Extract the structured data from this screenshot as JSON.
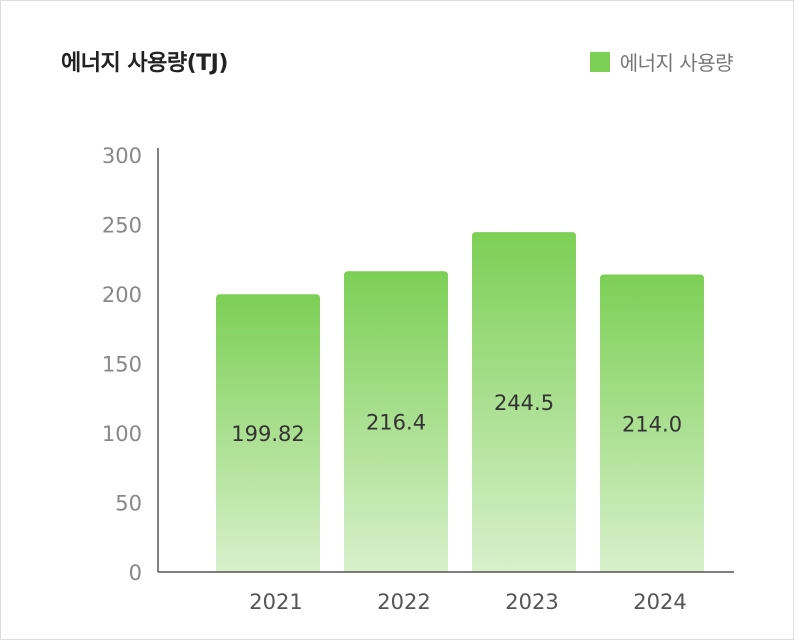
{
  "chart_data": {
    "type": "bar",
    "title": "에너지 사용량(TJ)",
    "categories": [
      "2021",
      "2022",
      "2023",
      "2024"
    ],
    "series": [
      {
        "name": "에너지 사용량",
        "values": [
          199.82,
          216.4,
          244.5,
          214.0
        ],
        "labels": [
          "199.82",
          "216.4",
          "244.5",
          "214.0"
        ]
      }
    ],
    "y_ticks": [
      "0",
      "50",
      "100",
      "150",
      "200",
      "250",
      "300"
    ],
    "ylim": [
      0,
      300
    ],
    "grid": false,
    "legend_position": "top-right",
    "colors": {
      "bar_top": "#7ccf55",
      "bar_bottom": "#d8f0cc",
      "axis": "#555555"
    }
  }
}
